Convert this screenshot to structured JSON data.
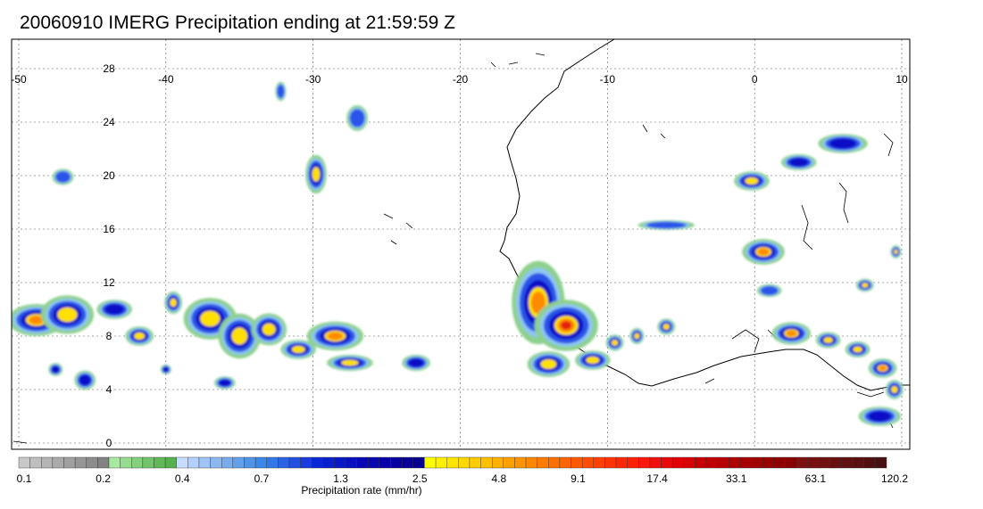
{
  "title": "20060910 IMERG Precipitation ending at 21:59:59 Z",
  "map": {
    "lon_range": [
      -50,
      10
    ],
    "lat_range": [
      -1,
      30
    ],
    "lon_ticks": [
      "-50",
      "-40",
      "-30",
      "-20",
      "-10",
      "0",
      "10"
    ],
    "lat_ticks": [
      "0",
      "4",
      "8",
      "12",
      "16",
      "20",
      "24",
      "28"
    ],
    "grid": "dashed",
    "colors": {
      "gray": "#a0a0a0",
      "green": "#8ed08e",
      "lightblue": "#8ec7f0",
      "blue": "#2a55e8",
      "darkblue": "#0a10c8",
      "yellow": "#ffe000",
      "orange": "#ff8a00",
      "red": "#e62010"
    },
    "precip_cells": [
      {
        "lon": -48.8,
        "lat": 9.2,
        "level": 4,
        "rx": 1.6,
        "ry": 1.0
      },
      {
        "lon": -46.7,
        "lat": 9.6,
        "level": 3,
        "rx": 1.5,
        "ry": 1.2
      },
      {
        "lon": -43.5,
        "lat": 10.0,
        "level": 2,
        "rx": 1.0,
        "ry": 0.6
      },
      {
        "lon": -41.8,
        "lat": 8.0,
        "level": 3,
        "rx": 0.8,
        "ry": 0.6
      },
      {
        "lon": -39.5,
        "lat": 10.5,
        "level": 3,
        "rx": 0.5,
        "ry": 0.7
      },
      {
        "lon": -37.0,
        "lat": 9.3,
        "level": 3,
        "rx": 1.5,
        "ry": 1.3
      },
      {
        "lon": -35.0,
        "lat": 8.0,
        "level": 3,
        "rx": 1.2,
        "ry": 1.4
      },
      {
        "lon": -33.0,
        "lat": 8.5,
        "level": 3,
        "rx": 1.0,
        "ry": 1.0
      },
      {
        "lon": -31.0,
        "lat": 7.0,
        "level": 3,
        "rx": 1.0,
        "ry": 0.6
      },
      {
        "lon": -28.5,
        "lat": 8.0,
        "level": 4,
        "rx": 1.6,
        "ry": 0.9
      },
      {
        "lon": -27.5,
        "lat": 6.0,
        "level": 3,
        "rx": 1.3,
        "ry": 0.5
      },
      {
        "lon": -29.8,
        "lat": 20.1,
        "level": 3,
        "rx": 0.6,
        "ry": 1.2
      },
      {
        "lon": -27.0,
        "lat": 24.3,
        "level": 1,
        "rx": 0.6,
        "ry": 0.8
      },
      {
        "lon": -23.0,
        "lat": 6.0,
        "level": 2,
        "rx": 0.8,
        "ry": 0.5
      },
      {
        "lon": -14.7,
        "lat": 10.5,
        "level": 4,
        "rx": 1.5,
        "ry": 2.6
      },
      {
        "lon": -12.8,
        "lat": 8.8,
        "level": 5,
        "rx": 1.8,
        "ry": 1.6
      },
      {
        "lon": -14.0,
        "lat": 5.9,
        "level": 3,
        "rx": 1.2,
        "ry": 0.8
      },
      {
        "lon": -11.0,
        "lat": 6.2,
        "level": 3,
        "rx": 1.0,
        "ry": 0.6
      },
      {
        "lon": -6.0,
        "lat": 8.7,
        "level": 3,
        "rx": 0.5,
        "ry": 0.5
      },
      {
        "lon": -8.0,
        "lat": 8.0,
        "level": 3,
        "rx": 0.4,
        "ry": 0.5
      },
      {
        "lon": -9.5,
        "lat": 7.5,
        "level": 3,
        "rx": 0.5,
        "ry": 0.5
      },
      {
        "lon": 0.6,
        "lat": 14.3,
        "level": 4,
        "rx": 1.2,
        "ry": 0.8
      },
      {
        "lon": 2.5,
        "lat": 8.2,
        "level": 4,
        "rx": 1.1,
        "ry": 0.7
      },
      {
        "lon": 5.0,
        "lat": 7.7,
        "level": 3,
        "rx": 0.7,
        "ry": 0.5
      },
      {
        "lon": 7.0,
        "lat": 7.0,
        "level": 3,
        "rx": 0.7,
        "ry": 0.5
      },
      {
        "lon": 8.7,
        "lat": 5.6,
        "level": 4,
        "rx": 0.8,
        "ry": 0.6
      },
      {
        "lon": 9.5,
        "lat": 4.0,
        "level": 3,
        "rx": 0.5,
        "ry": 0.6
      },
      {
        "lon": -0.2,
        "lat": 19.6,
        "level": 3,
        "rx": 1.0,
        "ry": 0.6
      },
      {
        "lon": 3.0,
        "lat": 21.0,
        "level": 2,
        "rx": 1.0,
        "ry": 0.5
      },
      {
        "lon": 6.0,
        "lat": 22.4,
        "level": 2,
        "rx": 1.4,
        "ry": 0.6
      },
      {
        "lon": 7.5,
        "lat": 11.8,
        "level": 3,
        "rx": 0.5,
        "ry": 0.4
      },
      {
        "lon": 9.6,
        "lat": 14.3,
        "level": 3,
        "rx": 0.3,
        "ry": 0.4
      },
      {
        "lon": -6.0,
        "lat": 16.3,
        "level": 1,
        "rx": 1.6,
        "ry": 0.3
      },
      {
        "lon": -47.0,
        "lat": 19.9,
        "level": 1,
        "rx": 0.6,
        "ry": 0.5
      },
      {
        "lon": -32.2,
        "lat": 26.3,
        "level": 1,
        "rx": 0.3,
        "ry": 0.6
      },
      {
        "lon": -47.5,
        "lat": 5.5,
        "level": 2,
        "rx": 0.4,
        "ry": 0.4
      },
      {
        "lon": -40.0,
        "lat": 5.5,
        "level": 2,
        "rx": 0.3,
        "ry": 0.3
      },
      {
        "lon": -36.0,
        "lat": 4.5,
        "level": 2,
        "rx": 0.6,
        "ry": 0.4
      },
      {
        "lon": -45.5,
        "lat": 4.7,
        "level": 2,
        "rx": 0.6,
        "ry": 0.6
      },
      {
        "lon": 1.0,
        "lat": 11.4,
        "level": 1,
        "rx": 0.7,
        "ry": 0.4
      },
      {
        "lon": 8.5,
        "lat": 2.0,
        "level": 2,
        "rx": 1.2,
        "ry": 0.6
      }
    ]
  },
  "colorbar": {
    "title": "Precipitation rate (mm/hr)",
    "colors": [
      "#c8c8c8",
      "#bebebe",
      "#b4b4b4",
      "#aaaaaa",
      "#a0a0a0",
      "#969696",
      "#8c8c8c",
      "#828282",
      "#a8e8a0",
      "#96dc8e",
      "#84d07c",
      "#72c46a",
      "#60b858",
      "#56b04e",
      "#c8dcff",
      "#b4d0ff",
      "#a0c4f8",
      "#8cb8f0",
      "#78acec",
      "#64a0e8",
      "#5094e8",
      "#3c88e8",
      "#3278e6",
      "#2a64e4",
      "#2250e0",
      "#1a3cdc",
      "#0a28d8",
      "#0820d0",
      "#0818c8",
      "#0810c0",
      "#0808b8",
      "#0808b0",
      "#0800a8",
      "#0800a0",
      "#080098",
      "#080090",
      "#ffff00",
      "#fff000",
      "#ffe400",
      "#ffd800",
      "#ffcc00",
      "#ffc000",
      "#ffb000",
      "#ffa000",
      "#ff9400",
      "#ff8800",
      "#ff7c00",
      "#ff7000",
      "#ff6400",
      "#ff5800",
      "#ff4c00",
      "#ff4000",
      "#ff3400",
      "#ff2800",
      "#ff2000",
      "#f81810",
      "#f01010",
      "#e80808",
      "#e00000",
      "#d80000",
      "#c80000",
      "#c00000",
      "#b80000",
      "#b00000",
      "#a80000",
      "#a00000",
      "#980000",
      "#900000",
      "#880000",
      "#801010",
      "#781010",
      "#701010",
      "#681010",
      "#601010",
      "#581010",
      "#501010",
      "#481010"
    ],
    "labels": [
      "0.1",
      "0.2",
      "0.4",
      "0.7",
      "1.3",
      "2.5",
      "4.8",
      "9.1",
      "17.4",
      "33.1",
      "63.1",
      "120.2"
    ]
  }
}
